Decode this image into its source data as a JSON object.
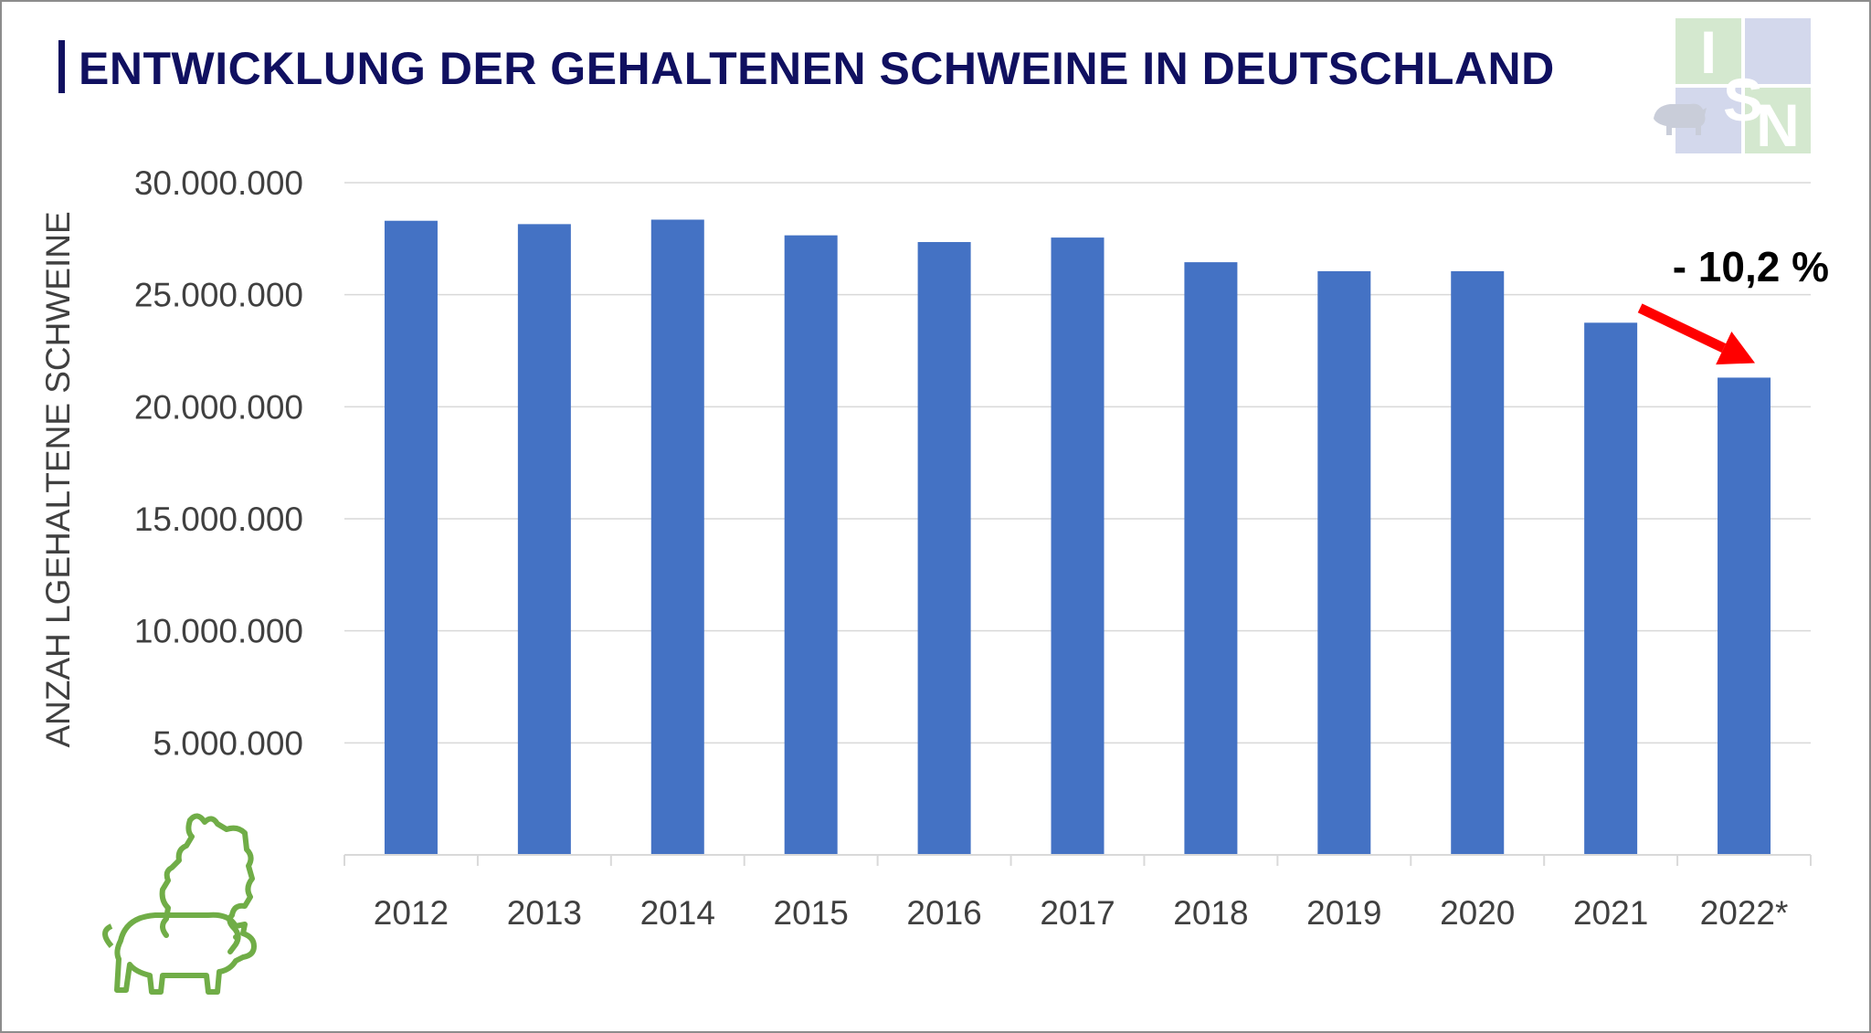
{
  "title": "ENTWICKLUNG DER GEHALTENEN SCHWEINE IN DEUTSCHLAND",
  "logo": {
    "text": "ISN"
  },
  "colors": {
    "bar": "#4472C4",
    "title": "#101060",
    "arrow": "#FF0000",
    "grid": "#D9D9D9",
    "text": "#404040"
  },
  "icons": [
    "isn-logo-icon",
    "pig-map-outline-icon",
    "down-trend-arrow-icon"
  ],
  "chart_data": {
    "type": "bar",
    "title": "ENTWICKLUNG DER GEHALTENEN SCHWEINE IN DEUTSCHLAND",
    "xlabel": "",
    "ylabel": "ANZAH LGEHALTENE SCHWEINE",
    "categories": [
      "2012",
      "2013",
      "2014",
      "2015",
      "2016",
      "2017",
      "2018",
      "2019",
      "2020",
      "2021",
      "2022*"
    ],
    "values": [
      28300000,
      28150000,
      28350000,
      27650000,
      27350000,
      27550000,
      26450000,
      26050000,
      26050000,
      23750000,
      21300000
    ],
    "ylim": [
      0,
      30000000
    ],
    "yticks": [
      5000000,
      10000000,
      15000000,
      20000000,
      25000000,
      30000000
    ],
    "ytick_labels": [
      "5.000.000",
      "10.000.000",
      "15.000.000",
      "20.000.000",
      "25.000.000",
      "30.000.000"
    ],
    "grid": true,
    "annotation": {
      "text": "- 10,2 %",
      "from_category": "2021",
      "to_category": "2022*"
    }
  }
}
